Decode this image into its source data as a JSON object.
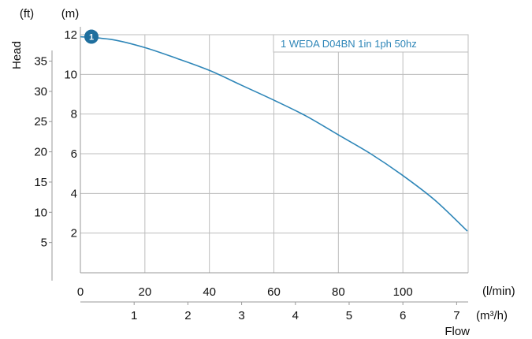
{
  "chart_data": {
    "type": "line",
    "title": "",
    "xlabel": "Flow",
    "ylabel": "Head",
    "x_units": [
      "(l/min)",
      "(m³/h)"
    ],
    "y_units": [
      "(ft)",
      "(m)"
    ],
    "xlim_lmin": [
      0,
      120
    ],
    "ylim_m": [
      0,
      12
    ],
    "x_ticks_lmin": [
      0,
      20,
      40,
      60,
      80,
      100
    ],
    "x_ticks_m3h": [
      1,
      2,
      3,
      4,
      5,
      6,
      7
    ],
    "y_ticks_m": [
      2,
      4,
      6,
      8,
      10,
      12
    ],
    "y_ticks_ft": [
      5,
      10,
      15,
      20,
      25,
      30,
      35
    ],
    "grid": true,
    "legend_position": "top-right",
    "series": [
      {
        "name": "1 WEDA D04BN 1in 1ph 50hz",
        "marker_label": "1",
        "color": "#2e86b8",
        "x": [
          0,
          10,
          20,
          30,
          40,
          50,
          60,
          70,
          80,
          90,
          100,
          110,
          120
        ],
        "y": [
          11.9,
          11.75,
          11.35,
          10.8,
          10.2,
          9.45,
          8.7,
          7.9,
          6.95,
          6.0,
          4.9,
          3.65,
          2.1
        ]
      }
    ]
  }
}
